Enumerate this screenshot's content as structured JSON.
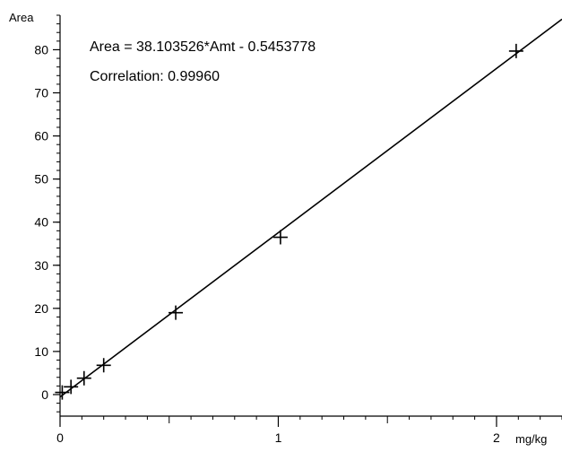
{
  "chart_data": {
    "type": "scatter",
    "title": "",
    "xlabel": "mg/kg",
    "ylabel": "Area",
    "xlim": [
      0,
      2.3
    ],
    "ylim": [
      -5,
      88
    ],
    "x_ticks": [
      0,
      1,
      2
    ],
    "x_tick_labels": [
      "0",
      "1",
      "2"
    ],
    "y_ticks": [
      0,
      10,
      20,
      30,
      40,
      50,
      60,
      70,
      80
    ],
    "y_tick_labels": [
      "0",
      "10",
      "20",
      "30",
      "40",
      "50",
      "60",
      "70",
      "80"
    ],
    "grid": false,
    "series": [
      {
        "marker": "plus",
        "x": [
          0.01,
          0.05,
          0.11,
          0.2,
          0.53,
          1.01,
          2.09
        ],
        "y": [
          0.5,
          1.8,
          3.8,
          6.8,
          19.0,
          36.5,
          79.7
        ]
      }
    ],
    "fit_line": {
      "slope": 38.103526,
      "intercept": -0.5453778
    },
    "annotations": [
      "Area = 38.103526*Amt - 0.5453778",
      "Correlation: 0.99960"
    ]
  }
}
